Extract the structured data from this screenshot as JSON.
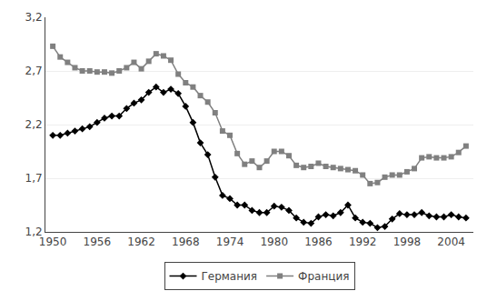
{
  "chart_data": {
    "type": "line",
    "x": [
      1950,
      1951,
      1952,
      1953,
      1954,
      1955,
      1956,
      1957,
      1958,
      1959,
      1960,
      1961,
      1962,
      1963,
      1964,
      1965,
      1966,
      1967,
      1968,
      1969,
      1970,
      1971,
      1972,
      1973,
      1974,
      1975,
      1976,
      1977,
      1978,
      1979,
      1980,
      1981,
      1982,
      1983,
      1984,
      1985,
      1986,
      1987,
      1988,
      1989,
      1990,
      1991,
      1992,
      1993,
      1994,
      1995,
      1996,
      1997,
      1998,
      1999,
      2000,
      2001,
      2002,
      2003,
      2004,
      2005,
      2006
    ],
    "series": [
      {
        "name": "Германия",
        "color": "#000000",
        "marker": "diamond",
        "values": [
          2.1,
          2.1,
          2.12,
          2.14,
          2.16,
          2.18,
          2.22,
          2.26,
          2.28,
          2.28,
          2.35,
          2.4,
          2.43,
          2.5,
          2.55,
          2.5,
          2.53,
          2.49,
          2.37,
          2.22,
          2.03,
          1.92,
          1.71,
          1.54,
          1.51,
          1.45,
          1.45,
          1.4,
          1.38,
          1.38,
          1.44,
          1.43,
          1.4,
          1.33,
          1.29,
          1.28,
          1.34,
          1.36,
          1.35,
          1.38,
          1.45,
          1.33,
          1.29,
          1.28,
          1.24,
          1.25,
          1.32,
          1.37,
          1.36,
          1.36,
          1.38,
          1.35,
          1.34,
          1.34,
          1.36,
          1.34,
          1.33
        ]
      },
      {
        "name": "Франция",
        "color": "#808080",
        "marker": "square",
        "values": [
          2.93,
          2.83,
          2.78,
          2.73,
          2.7,
          2.7,
          2.69,
          2.69,
          2.68,
          2.7,
          2.73,
          2.78,
          2.72,
          2.79,
          2.86,
          2.84,
          2.8,
          2.67,
          2.59,
          2.55,
          2.47,
          2.41,
          2.31,
          2.14,
          2.1,
          1.93,
          1.83,
          1.86,
          1.8,
          1.86,
          1.95,
          1.95,
          1.91,
          1.82,
          1.8,
          1.81,
          1.84,
          1.81,
          1.8,
          1.79,
          1.78,
          1.77,
          1.73,
          1.65,
          1.66,
          1.71,
          1.73,
          1.73,
          1.76,
          1.79,
          1.89,
          1.9,
          1.89,
          1.89,
          1.9,
          1.94,
          2.0
        ]
      }
    ],
    "xlim": [
      1949,
      2007
    ],
    "xticks": [
      1950,
      1956,
      1962,
      1968,
      1974,
      1980,
      1986,
      1992,
      1998,
      2004
    ],
    "ylim": [
      1.2,
      3.2
    ],
    "yticks": [
      {
        "value": 1.2,
        "label": "1,2"
      },
      {
        "value": 1.7,
        "label": "1,7"
      },
      {
        "value": 2.2,
        "label": "2,2"
      },
      {
        "value": 2.7,
        "label": "2,7"
      },
      {
        "value": 3.2,
        "label": "3,2"
      }
    ],
    "grid": "y",
    "legend": "bottom"
  }
}
